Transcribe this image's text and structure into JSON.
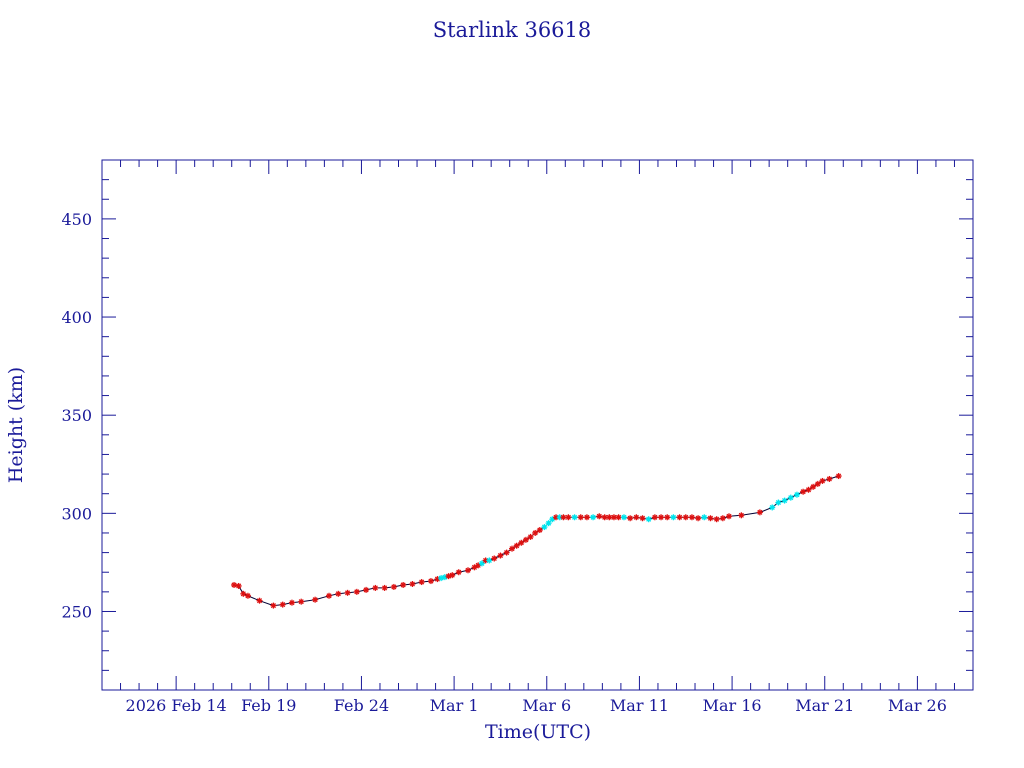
{
  "chart_data": {
    "type": "scatter",
    "title": "Starlink 36618",
    "xlabel": "Time(UTC)",
    "ylabel": "Height (km)",
    "xlim": [
      "2026-02-10",
      "2026-03-29"
    ],
    "ylim": [
      210,
      480
    ],
    "x_ticks": [
      {
        "date": "2026-02-14",
        "label": "2026 Feb 14"
      },
      {
        "date": "2026-02-19",
        "label": "Feb 19"
      },
      {
        "date": "2026-02-24",
        "label": "Feb 24"
      },
      {
        "date": "2026-03-01",
        "label": "Mar  1"
      },
      {
        "date": "2026-03-06",
        "label": "Mar  6"
      },
      {
        "date": "2026-03-11",
        "label": "Mar 11"
      },
      {
        "date": "2026-03-16",
        "label": "Mar 16"
      },
      {
        "date": "2026-03-21",
        "label": "Mar 21"
      },
      {
        "date": "2026-03-26",
        "label": "Mar 26"
      }
    ],
    "y_ticks": [
      250,
      300,
      350,
      400,
      450
    ],
    "colors": {
      "axis": "#1a1a99",
      "line": "#000033",
      "marker_red": "#dd1111",
      "marker_cyan": "#00e5ee"
    },
    "points": [
      [
        "2026-02-17",
        263.5,
        "red"
      ],
      [
        "2026-02-17",
        263,
        "red"
      ],
      [
        "2026-02-17",
        259,
        "red"
      ],
      [
        "2026-02-17",
        258,
        "red"
      ],
      [
        "2026-02-18",
        255.5,
        "red"
      ],
      [
        "2026-02-19",
        253,
        "red"
      ],
      [
        "2026-02-19",
        253.5,
        "red"
      ],
      [
        "2026-02-20",
        254.5,
        "red"
      ],
      [
        "2026-02-20",
        255,
        "red"
      ],
      [
        "2026-02-21",
        256,
        "red"
      ],
      [
        "2026-02-22",
        258,
        "red"
      ],
      [
        "2026-02-22",
        259,
        "red"
      ],
      [
        "2026-02-23",
        259.5,
        "red"
      ],
      [
        "2026-02-23",
        260,
        "red"
      ],
      [
        "2026-02-24",
        261,
        "red"
      ],
      [
        "2026-02-24",
        262,
        "red"
      ],
      [
        "2026-02-25",
        262,
        "red"
      ],
      [
        "2026-02-25",
        262.5,
        "red"
      ],
      [
        "2026-02-26",
        263.5,
        "red"
      ],
      [
        "2026-02-26",
        264,
        "red"
      ],
      [
        "2026-02-27",
        265,
        "red"
      ],
      [
        "2026-02-27",
        265.5,
        "red"
      ],
      [
        "2026-02-28",
        266.5,
        "red"
      ],
      [
        "2026-02-28",
        267,
        "cyan"
      ],
      [
        "2026-02-28",
        267.5,
        "cyan"
      ],
      [
        "2026-02-28",
        268,
        "red"
      ],
      [
        "2026-02-28",
        268.5,
        "red"
      ],
      [
        "2026-03-01",
        270,
        "red"
      ],
      [
        "2026-03-01",
        271,
        "red"
      ],
      [
        "2026-03-02",
        272.5,
        "red"
      ],
      [
        "2026-03-02",
        273.5,
        "red"
      ],
      [
        "2026-03-02",
        274.5,
        "cyan"
      ],
      [
        "2026-03-02",
        276,
        "red"
      ],
      [
        "2026-03-02",
        276,
        "cyan"
      ],
      [
        "2026-03-03",
        277,
        "red"
      ],
      [
        "2026-03-03",
        278.5,
        "red"
      ],
      [
        "2026-03-03",
        280,
        "red"
      ],
      [
        "2026-03-04",
        282,
        "red"
      ],
      [
        "2026-03-04",
        283.5,
        "red"
      ],
      [
        "2026-03-04",
        285,
        "red"
      ],
      [
        "2026-03-04",
        286.5,
        "red"
      ],
      [
        "2026-03-05",
        288,
        "red"
      ],
      [
        "2026-03-05",
        290,
        "red"
      ],
      [
        "2026-03-05",
        291.5,
        "red"
      ],
      [
        "2026-03-05",
        293,
        "cyan"
      ],
      [
        "2026-03-06",
        295,
        "cyan"
      ],
      [
        "2026-03-06",
        297,
        "cyan"
      ],
      [
        "2026-03-06",
        298,
        "red"
      ],
      [
        "2026-03-06",
        298,
        "cyan"
      ],
      [
        "2026-03-06",
        298,
        "red"
      ],
      [
        "2026-03-07",
        298,
        "red"
      ],
      [
        "2026-03-07",
        298,
        "cyan"
      ],
      [
        "2026-03-07",
        298,
        "red"
      ],
      [
        "2026-03-08",
        298,
        "red"
      ],
      [
        "2026-03-08",
        298,
        "cyan"
      ],
      [
        "2026-03-08",
        298.5,
        "red"
      ],
      [
        "2026-03-09",
        298,
        "red"
      ],
      [
        "2026-03-09",
        298,
        "red"
      ],
      [
        "2026-03-09",
        298,
        "red"
      ],
      [
        "2026-03-09",
        298,
        "red"
      ],
      [
        "2026-03-10",
        298,
        "cyan"
      ],
      [
        "2026-03-10",
        297.5,
        "red"
      ],
      [
        "2026-03-10",
        298,
        "red"
      ],
      [
        "2026-03-11",
        297.5,
        "red"
      ],
      [
        "2026-03-11",
        297,
        "cyan"
      ],
      [
        "2026-03-11",
        298,
        "red"
      ],
      [
        "2026-03-12",
        298,
        "red"
      ],
      [
        "2026-03-12",
        298,
        "red"
      ],
      [
        "2026-03-12",
        298,
        "cyan"
      ],
      [
        "2026-03-13",
        298,
        "red"
      ],
      [
        "2026-03-13",
        298,
        "red"
      ],
      [
        "2026-03-13",
        298,
        "red"
      ],
      [
        "2026-03-14",
        297.5,
        "red"
      ],
      [
        "2026-03-14",
        298,
        "cyan"
      ],
      [
        "2026-03-14",
        297.5,
        "red"
      ],
      [
        "2026-03-15",
        297,
        "red"
      ],
      [
        "2026-03-15",
        297.5,
        "red"
      ],
      [
        "2026-03-15",
        298.5,
        "red"
      ],
      [
        "2026-03-16",
        299,
        "red"
      ],
      [
        "2026-03-17",
        300.5,
        "red"
      ],
      [
        "2026-03-18",
        303,
        "cyan"
      ],
      [
        "2026-03-18",
        305.5,
        "cyan"
      ],
      [
        "2026-03-18",
        306.5,
        "cyan"
      ],
      [
        "2026-03-19",
        308,
        "cyan"
      ],
      [
        "2026-03-19",
        309.5,
        "cyan"
      ],
      [
        "2026-03-19",
        311,
        "red"
      ],
      [
        "2026-03-20",
        312,
        "red"
      ],
      [
        "2026-03-20",
        313.5,
        "red"
      ],
      [
        "2026-03-20",
        315,
        "red"
      ],
      [
        "2026-03-20",
        316.5,
        "red"
      ],
      [
        "2026-03-21",
        317.5,
        "red"
      ],
      [
        "2026-03-21",
        319,
        "red"
      ]
    ]
  }
}
